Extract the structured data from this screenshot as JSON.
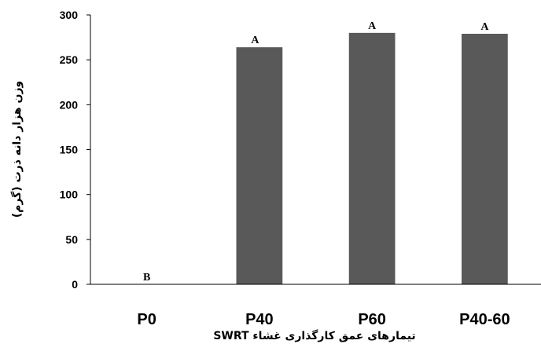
{
  "chart_data": {
    "type": "bar",
    "categories": [
      "P0",
      "P40",
      "P60",
      "P40-60"
    ],
    "values": [
      0,
      264,
      280,
      279
    ],
    "data_labels": [
      "B",
      "Aَ",
      "A",
      "A"
    ],
    "xlabel": "تیمارهای عمق کارگذاری غشاء SWRT",
    "ylabel": "وزن هزار دانه ذرت (گرم)",
    "ylim": [
      0,
      300
    ],
    "yticks": [
      0,
      50,
      100,
      150,
      200,
      250,
      300
    ],
    "grid": false,
    "bar_color": "#595959"
  }
}
